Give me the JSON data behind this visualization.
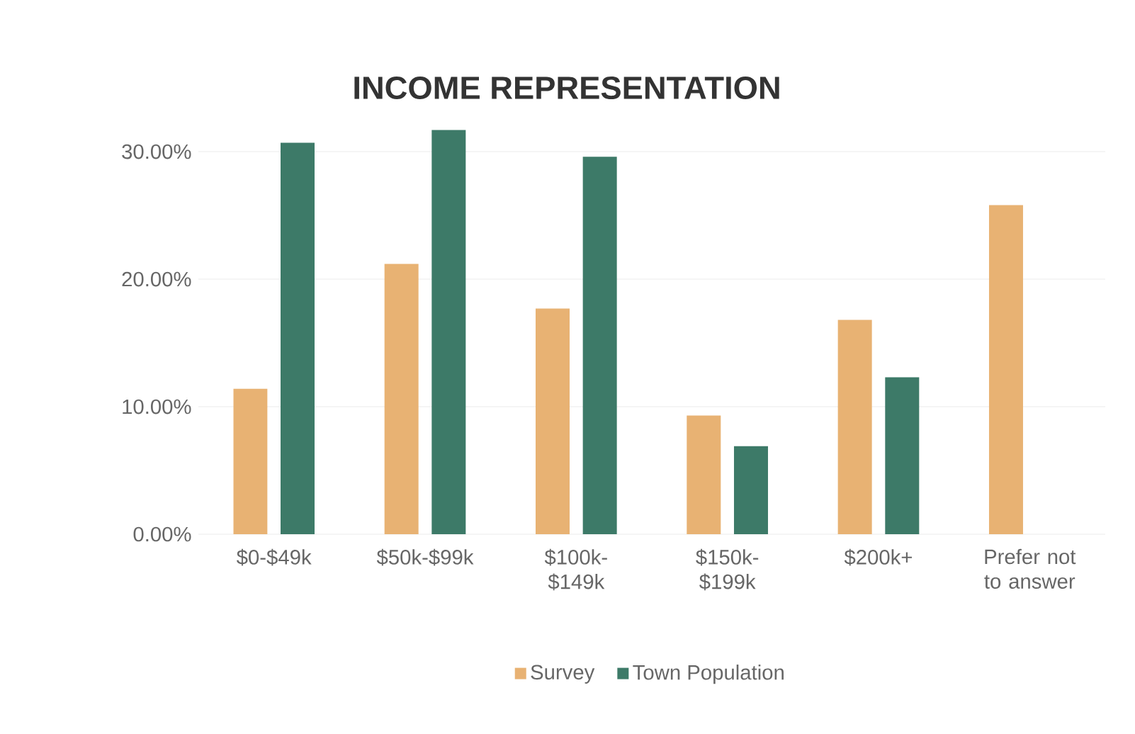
{
  "chart_data": {
    "type": "bar",
    "title": "INCOME REPRESENTATION",
    "categories": [
      "$0-$49k",
      "$50k-$99k",
      "$100k-$149k",
      "$150k-$199k",
      "$200k+",
      "Prefer not to answer"
    ],
    "series": [
      {
        "name": "Survey",
        "color": "#e8b273",
        "values": [
          11.4,
          21.2,
          17.7,
          9.3,
          16.8,
          25.8
        ]
      },
      {
        "name": "Town Population",
        "color": "#3d7a68",
        "values": [
          30.7,
          31.7,
          29.6,
          6.9,
          12.3,
          null
        ]
      }
    ],
    "ylim": [
      0,
      32
    ],
    "yticks": [
      {
        "value": 0,
        "label": "0.00%"
      },
      {
        "value": 10,
        "label": "10.00%"
      },
      {
        "value": 20,
        "label": "20.00%"
      },
      {
        "value": 30,
        "label": "30.00%"
      }
    ],
    "grid": "y",
    "legend": "bottom"
  }
}
